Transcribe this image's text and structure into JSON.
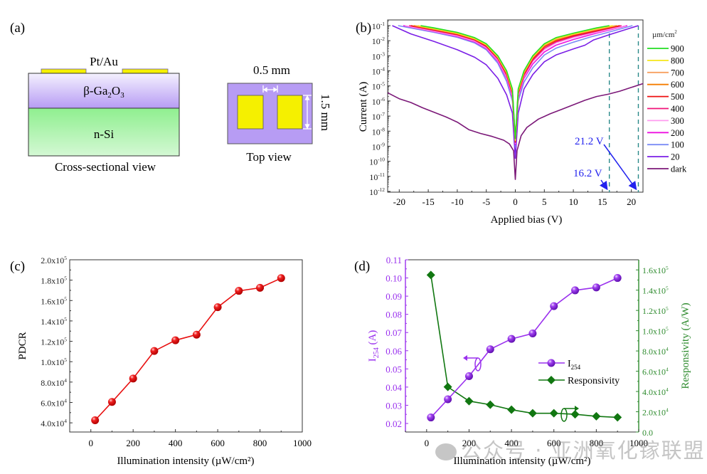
{
  "panel_a": {
    "label": "(a)",
    "contact_label": "Pt/Au",
    "layer_top": "β-Ga",
    "layer_top_sub1": "2",
    "layer_top_mid": "O",
    "layer_top_sub2": "3",
    "layer_bottom": "n-Si",
    "cross_caption": "Cross-sectional view",
    "gap_label": "0.5 mm",
    "height_label": "1.5 mm",
    "top_caption": "Top view",
    "colors": {
      "ga2o3": "#b79cf4",
      "si": "#8fef8f",
      "contact": "#f5f000"
    }
  },
  "watermark": "公众号 · 亚洲氧化镓联盟",
  "chart_data": [
    {
      "id": "b",
      "panel_label": "(b)",
      "type": "line",
      "xlabel": "Applied bias (V)",
      "ylabel": "Current (A)",
      "yscale": "log",
      "xlim": [
        -22,
        22
      ],
      "ylim_exp": [
        -12,
        -1
      ],
      "xticks": [
        -20,
        -15,
        -10,
        -5,
        0,
        5,
        10,
        15,
        20
      ],
      "yticks_exp": [
        -1,
        -2,
        -3,
        -4,
        -5,
        -6,
        -7,
        -8,
        -9,
        -10,
        -11,
        -12
      ],
      "legend_title": "µm/cm²",
      "legend_position": "right-outside",
      "series": [
        {
          "name": "900",
          "color": "#22dd22",
          "x": [
            -16.3,
            -14,
            -10,
            -7,
            -5,
            -3,
            -1.5,
            -0.5,
            0,
            0.5,
            1.5,
            3,
            5,
            7,
            10,
            14,
            16.2
          ],
          "y_exp": [
            -1,
            -1.15,
            -1.45,
            -1.8,
            -2.2,
            -3,
            -4,
            -5.2,
            -8.5,
            -5.2,
            -4,
            -3,
            -2.2,
            -1.8,
            -1.5,
            -1.15,
            -1
          ]
        },
        {
          "name": "800",
          "color": "#f5e61a",
          "x": [
            -16.8,
            -14,
            -10,
            -7,
            -5,
            -3,
            -1.5,
            -0.5,
            0,
            0.5,
            1.5,
            3,
            5,
            7,
            10,
            14,
            16.8
          ],
          "y_exp": [
            -1,
            -1.2,
            -1.5,
            -1.85,
            -2.25,
            -3.05,
            -4.05,
            -5.3,
            -8.6,
            -5.3,
            -4.05,
            -3.05,
            -2.25,
            -1.85,
            -1.55,
            -1.2,
            -1
          ]
        },
        {
          "name": "700",
          "color": "#f8a060",
          "x": [
            -17.2,
            -14,
            -10,
            -7,
            -5,
            -3,
            -1.5,
            -0.5,
            0,
            0.5,
            1.5,
            3,
            5,
            7,
            10,
            14,
            17.2
          ],
          "y_exp": [
            -1,
            -1.22,
            -1.52,
            -1.88,
            -2.28,
            -3.1,
            -4.1,
            -5.35,
            -8.6,
            -5.35,
            -4.1,
            -3.1,
            -2.3,
            -1.9,
            -1.58,
            -1.25,
            -1
          ]
        },
        {
          "name": "600",
          "color": "#f57d00",
          "x": [
            -17.5,
            -14,
            -10,
            -7,
            -5,
            -3,
            -1.5,
            -0.5,
            0,
            0.5,
            1.5,
            3,
            5,
            7,
            10,
            14,
            17.5
          ],
          "y_exp": [
            -1,
            -1.25,
            -1.55,
            -1.9,
            -2.3,
            -3.12,
            -4.15,
            -5.4,
            -8.65,
            -5.4,
            -4.15,
            -3.15,
            -2.35,
            -1.95,
            -1.6,
            -1.28,
            -1
          ]
        },
        {
          "name": "500",
          "color": "#ee1010",
          "x": [
            -18,
            -14,
            -10,
            -7,
            -5,
            -3,
            -1.5,
            -0.5,
            0,
            0.5,
            1.5,
            3,
            5,
            7,
            10,
            14,
            18
          ],
          "y_exp": [
            -1,
            -1.28,
            -1.58,
            -1.93,
            -2.35,
            -3.15,
            -4.2,
            -5.45,
            -8.7,
            -5.45,
            -4.2,
            -3.2,
            -2.4,
            -2,
            -1.65,
            -1.32,
            -1
          ]
        },
        {
          "name": "400",
          "color": "#f0147a",
          "x": [
            -18.3,
            -14,
            -10,
            -7,
            -5,
            -3,
            -1.5,
            -0.5,
            0,
            0.5,
            1.5,
            3,
            5,
            7,
            10,
            14,
            18.3
          ],
          "y_exp": [
            -1,
            -1.32,
            -1.62,
            -1.97,
            -2.4,
            -3.22,
            -4.3,
            -5.55,
            -8.75,
            -5.55,
            -4.3,
            -3.3,
            -2.5,
            -2.08,
            -1.72,
            -1.38,
            -1
          ]
        },
        {
          "name": "300",
          "color": "#ff9cf0",
          "x": [
            -19,
            -14,
            -10,
            -7,
            -5,
            -3,
            -1.5,
            -0.5,
            0,
            0.5,
            1.5,
            3,
            5,
            7,
            10,
            14,
            19
          ],
          "y_exp": [
            -1,
            -1.38,
            -1.68,
            -2.03,
            -2.47,
            -3.3,
            -4.4,
            -5.65,
            -8.8,
            -5.65,
            -4.4,
            -3.4,
            -2.6,
            -2.15,
            -1.8,
            -1.45,
            -1
          ]
        },
        {
          "name": "200",
          "color": "#ee10e0",
          "x": [
            -19.3,
            -14,
            -10,
            -7,
            -5,
            -3,
            -1.5,
            -0.5,
            0,
            0.5,
            1.5,
            3,
            5,
            7,
            10,
            14,
            19.3
          ],
          "y_exp": [
            -1,
            -1.4,
            -1.72,
            -2.08,
            -2.52,
            -3.38,
            -4.5,
            -5.75,
            -8.9,
            -5.75,
            -4.5,
            -3.55,
            -2.75,
            -2.3,
            -1.92,
            -1.5,
            -1
          ]
        },
        {
          "name": "100",
          "color": "#7b8cf5",
          "x": [
            -20.2,
            -14,
            -10,
            -7,
            -5,
            -3,
            -1.5,
            -0.5,
            0,
            0.5,
            1.5,
            3,
            5,
            7,
            10,
            13,
            15,
            20.2
          ],
          "y_exp": [
            -1,
            -1.45,
            -1.78,
            -2.15,
            -2.6,
            -3.5,
            -4.7,
            -6,
            -9,
            -6,
            -4.75,
            -3.8,
            -2.95,
            -2.5,
            -2.1,
            -1.75,
            -1.55,
            -1
          ]
        },
        {
          "name": "20",
          "color": "#7a1ee6",
          "x": [
            -21.2,
            -18,
            -14,
            -10,
            -7,
            -5,
            -3,
            -1.5,
            -0.5,
            0,
            0.5,
            1.5,
            3,
            5,
            7,
            10,
            12,
            13.5,
            16.2,
            21.2
          ],
          "y_exp": [
            -1,
            -1.55,
            -2.05,
            -2.6,
            -3.1,
            -3.6,
            -4.5,
            -5.6,
            -6.8,
            -9.8,
            -6.8,
            -5.2,
            -4.25,
            -3.4,
            -2.95,
            -2.55,
            -2.3,
            -1.95,
            -1.6,
            -1
          ]
        },
        {
          "name": "dark",
          "color": "#7b1878",
          "x": [
            -22,
            -20,
            -18,
            -16,
            -14,
            -12,
            -10,
            -8,
            -6,
            -4,
            -2,
            -1,
            -0.3,
            0,
            0.3,
            1,
            2,
            4,
            6,
            8,
            10,
            12,
            14,
            16,
            18,
            20,
            22
          ],
          "y_exp": [
            -5.45,
            -5.85,
            -6.1,
            -6.45,
            -6.75,
            -7.05,
            -7.4,
            -7.9,
            -8.15,
            -8.35,
            -8.6,
            -8.85,
            -9.3,
            -11.2,
            -9.3,
            -8.3,
            -7.75,
            -7.2,
            -6.85,
            -6.55,
            -6.25,
            -5.95,
            -5.7,
            -5.55,
            -5.35,
            -5.1,
            -4.85
          ]
        }
      ],
      "annotations": [
        {
          "text": "21.2 V",
          "arrow_to_x": 21.2,
          "color": "#2222ee"
        },
        {
          "text": "16.2 V",
          "arrow_to_x": 16.2,
          "color": "#2222ee"
        }
      ],
      "reference_lines_x": [
        16.2,
        21.2
      ]
    },
    {
      "id": "c",
      "panel_label": "(c)",
      "type": "line",
      "xlabel": "Illumination intensity (µW/cm²)",
      "ylabel": "PDCR",
      "xlim": [
        -100,
        1000
      ],
      "ylim": [
        31000,
        200000
      ],
      "xticks": [
        0,
        200,
        400,
        600,
        800,
        1000
      ],
      "yticks": [
        40000,
        60000,
        80000,
        100000,
        120000,
        140000,
        160000,
        180000,
        200000
      ],
      "ytick_labels": [
        [
          "4.0x10",
          "4"
        ],
        [
          "6.0x10",
          "4"
        ],
        [
          "8.0x10",
          "4"
        ],
        [
          "1.0x10",
          "5"
        ],
        [
          "1.2x10",
          "5"
        ],
        [
          "1.4x10",
          "5"
        ],
        [
          "1.6x10",
          "5"
        ],
        [
          "1.8x10",
          "5"
        ],
        [
          "2.0x10",
          "5"
        ]
      ],
      "color": "#e81010",
      "x": [
        20,
        100,
        200,
        300,
        400,
        500,
        600,
        700,
        800,
        900
      ],
      "y": [
        42500,
        60500,
        83500,
        110500,
        121000,
        126500,
        153500,
        169500,
        172500,
        182000
      ]
    },
    {
      "id": "d",
      "panel_label": "(d)",
      "type": "line",
      "xlabel": "Illumination intensity (µW/cm²)",
      "xlim": [
        -100,
        1000
      ],
      "xticks": [
        0,
        200,
        400,
        600,
        800,
        1000
      ],
      "legend_position": "center-right",
      "series": [
        {
          "name": "I",
          "name_sub": "254",
          "axis": "left",
          "marker": "sphere",
          "color": "#9a30ee",
          "x": [
            20,
            100,
            200,
            300,
            400,
            500,
            600,
            700,
            800,
            900
          ],
          "y": [
            0.0233,
            0.0333,
            0.046,
            0.0608,
            0.0665,
            0.0695,
            0.0845,
            0.0932,
            0.0948,
            0.1
          ]
        },
        {
          "name": "Responsivity",
          "axis": "right",
          "marker": "diamond",
          "color": "#117711",
          "x": [
            20,
            100,
            200,
            300,
            400,
            500,
            600,
            700,
            800,
            900
          ],
          "y": [
            155000,
            44500,
            30500,
            27000,
            22000,
            18500,
            18500,
            17500,
            15500,
            14500
          ]
        }
      ],
      "left_axis": {
        "label": "I",
        "label_sub": "254",
        "label_suffix": " (A)",
        "color": "#9a30ee",
        "ylim": [
          0.0153,
          0.11
        ],
        "ticks": [
          0.02,
          0.03,
          0.04,
          0.05,
          0.06,
          0.07,
          0.08,
          0.09,
          0.1,
          0.11
        ],
        "tick_labels": [
          "0.02",
          "0.03",
          "0.04",
          "0.05",
          "0.06",
          "0.07",
          "0.08",
          "0.09",
          "0.10",
          "0.11"
        ]
      },
      "right_axis": {
        "label": "Responsivity (A/W)",
        "color": "#2e8b2e",
        "ylim": [
          0,
          170000
        ],
        "ticks": [
          0,
          20000,
          40000,
          60000,
          80000,
          100000,
          120000,
          140000,
          160000
        ],
        "tick_labels": [
          [
            "0.0",
            ""
          ],
          [
            "2.0x10",
            "4"
          ],
          [
            "4.0x10",
            "4"
          ],
          [
            "6.0x10",
            "4"
          ],
          [
            "8.0x10",
            "4"
          ],
          [
            "1.0x10",
            "5"
          ],
          [
            "1.2x10",
            "5"
          ],
          [
            "1.4x10",
            "5"
          ],
          [
            "1.6x10",
            "5"
          ]
        ]
      }
    }
  ]
}
